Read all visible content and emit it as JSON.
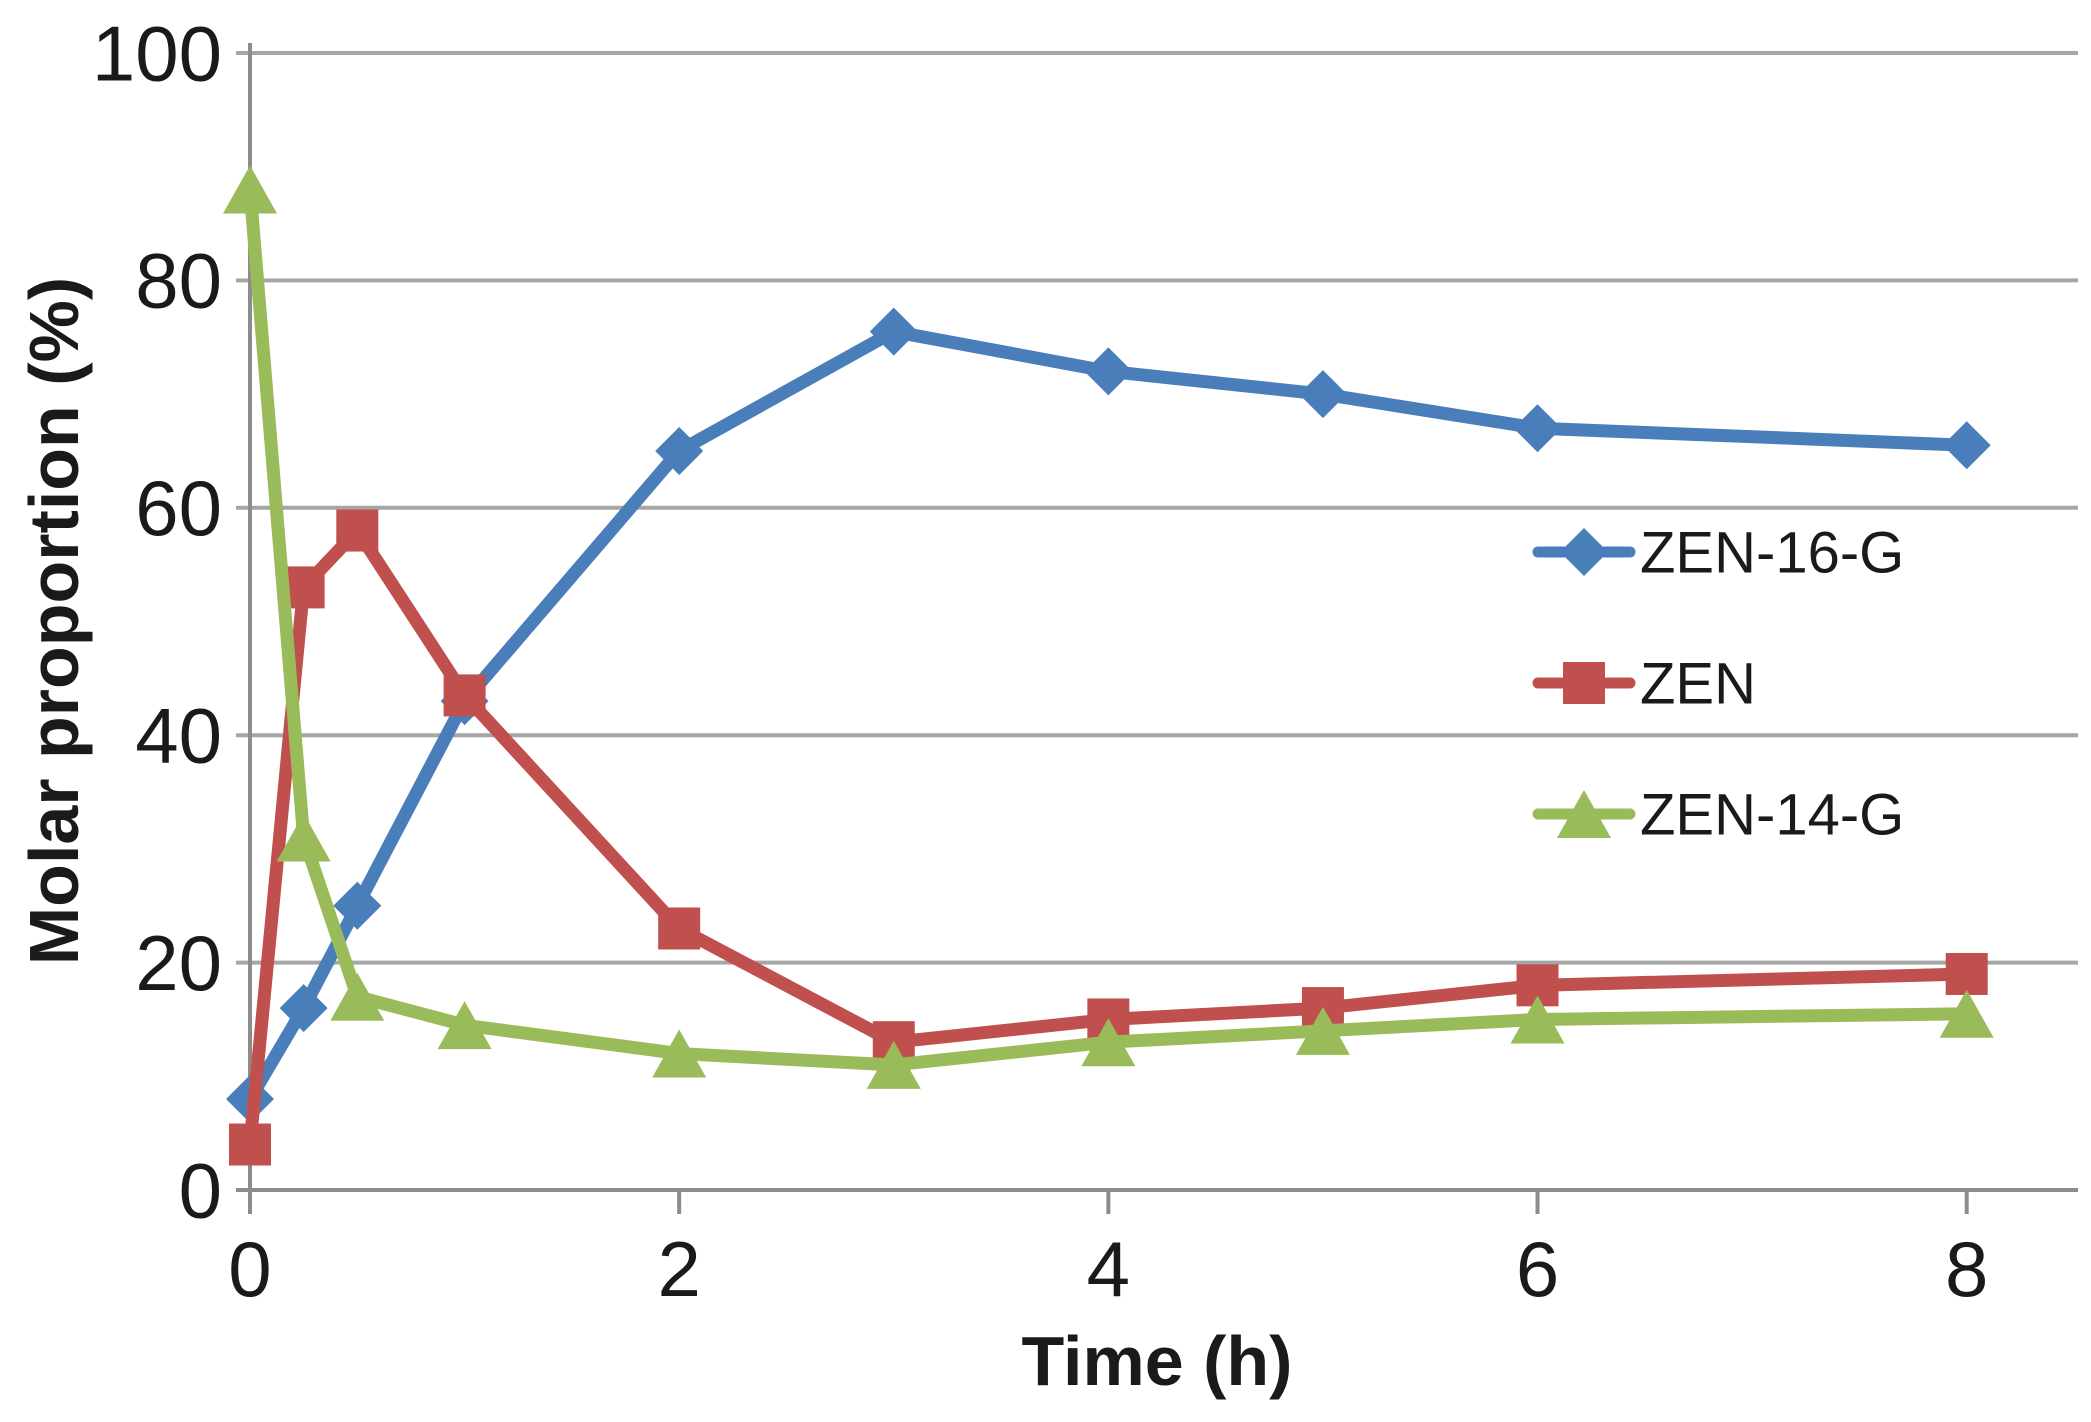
{
  "figure": {
    "background": "#ffffff"
  },
  "chart_data": {
    "type": "line",
    "title": "",
    "xlabel": "Time (h)",
    "ylabel": "Molar proportion (%)",
    "x": [
      0,
      0.25,
      0.5,
      1,
      2,
      3,
      4,
      5,
      6,
      8
    ],
    "series": [
      {
        "name": "ZEN-16-G",
        "color": "#4A7EBB",
        "marker": "diamond",
        "values": [
          8,
          16,
          25,
          43,
          65,
          75.5,
          72,
          70,
          67,
          65.5
        ]
      },
      {
        "name": "ZEN",
        "color": "#C0504D",
        "marker": "square",
        "values": [
          4,
          53,
          58,
          43.5,
          23,
          13,
          15,
          16,
          18,
          19
        ]
      },
      {
        "name": "ZEN-14-G",
        "color": "#9ABB59",
        "marker": "triangle",
        "values": [
          88,
          31,
          17,
          14.5,
          12,
          11,
          13,
          14,
          15,
          15.5
        ]
      }
    ],
    "xlim": [
      0,
      8.5
    ],
    "ylim": [
      0,
      100
    ],
    "x_ticks": [
      "0",
      "2",
      "4",
      "6",
      "8"
    ],
    "x_tick_values": [
      0,
      2,
      4,
      6,
      8
    ],
    "y_ticks": [
      "0",
      "20",
      "40",
      "60",
      "80",
      "100"
    ],
    "y_tick_values": [
      0,
      20,
      40,
      60,
      80,
      100
    ],
    "grid": "horizontal",
    "legend_position": "inside-right",
    "gridline_color": "#A6A6A6",
    "axis_color": "#8C8C8C",
    "text_color": "#1A1A1A"
  }
}
